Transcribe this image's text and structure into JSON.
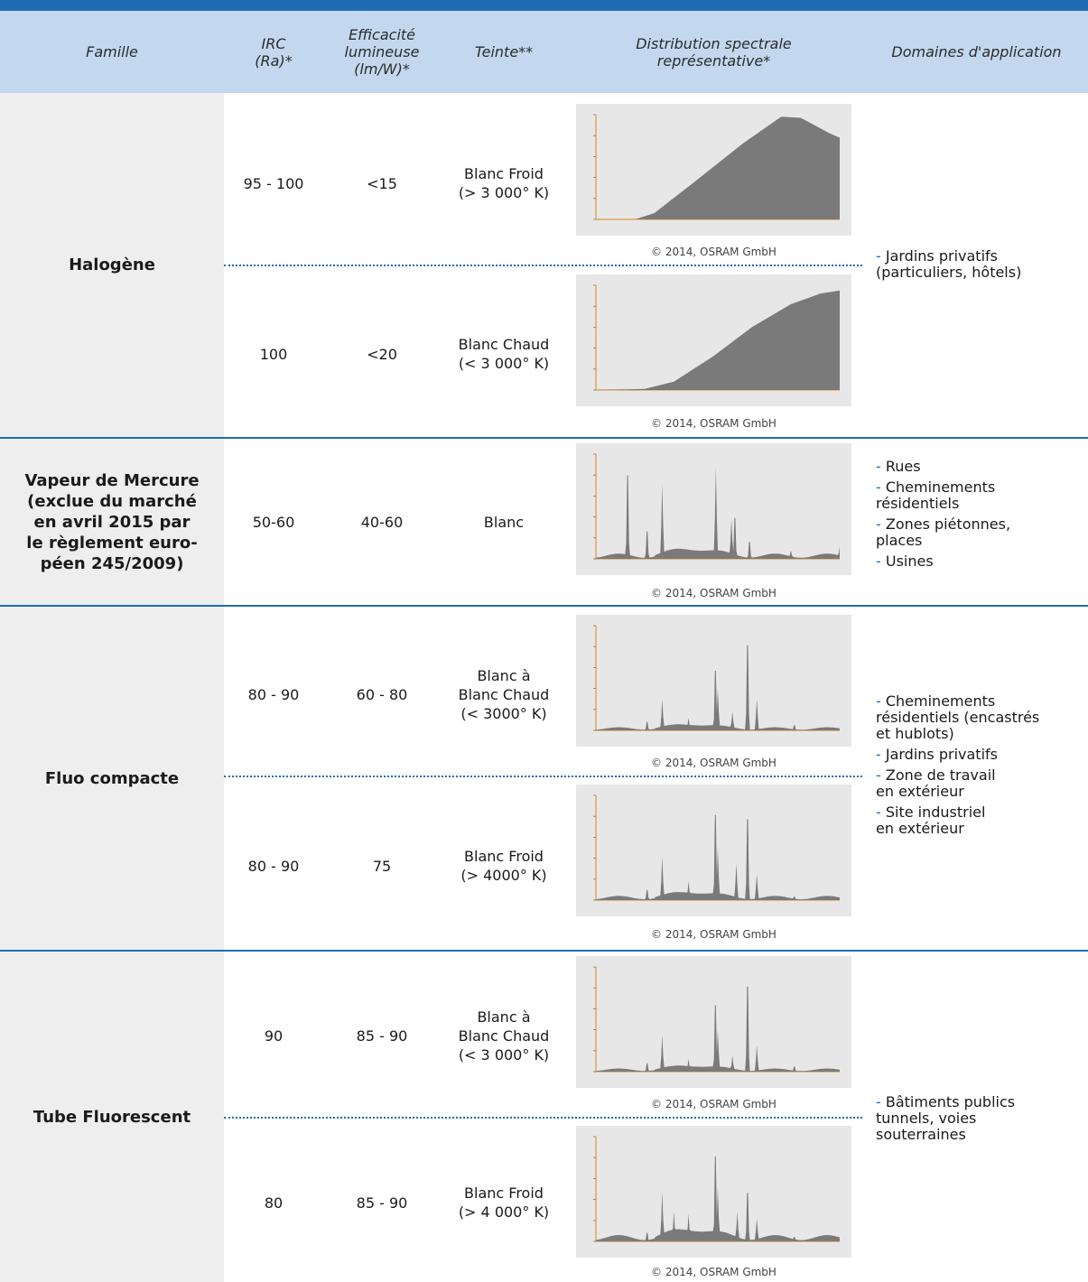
{
  "header": {
    "famille": "Famille",
    "irc": "IRC\n(Ra)*",
    "efficacite": "Efficacité\nlumineuse\n(lm/W)*",
    "teinte": "Teinte**",
    "distribution": "Distribution spectrale\nreprésentative*",
    "domaines": "Domaines d'application"
  },
  "credit": "© 2014, OSRAM GmbH",
  "families": {
    "halogene": "Halogène",
    "mercure": "Vapeur de Mercure\n(exclue du marché\nen avril 2015 par\nle règlement euro-\npéen 245/2009)",
    "fluo": "Fluo compacte",
    "tube": "Tube Fluorescent"
  },
  "rows": [
    {
      "irc": "95 - 100",
      "eff": "<15",
      "teinte": "Blanc Froid\n(> 3 000° K)"
    },
    {
      "irc": "100",
      "eff": "<20",
      "teinte": "Blanc Chaud\n(< 3 000° K)"
    },
    {
      "irc": "50-60",
      "eff": "40-60",
      "teinte": "Blanc"
    },
    {
      "irc": "80 - 90",
      "eff": "60 - 80",
      "teinte": "Blanc à\nBlanc Chaud\n(< 3000° K)"
    },
    {
      "irc": "80 - 90",
      "eff": "75",
      "teinte": "Blanc Froid\n(> 4000° K)"
    },
    {
      "irc": "90",
      "eff": "85 - 90",
      "teinte": "Blanc à\nBlanc Chaud\n(< 3 000° K)"
    },
    {
      "irc": "80",
      "eff": "85 - 90",
      "teinte": "Blanc Froid\n(> 4 000° K)"
    }
  ],
  "domains": {
    "halogene": [
      "Jardins privatifs\n(particuliers, hôtels)"
    ],
    "mercure": [
      "Rues",
      "Cheminements\nrésidentiels",
      "Zones piétonnes,\nplaces",
      "Usines"
    ],
    "fluo": [
      "Cheminements\nrésidentiels (encastrés\net hublots)",
      "Jardins privatifs",
      "Zone de travail\nen extérieur",
      "Site industriel\nen extérieur"
    ],
    "tube": [
      "Bâtiments publics\ntunnels, voies\nsouterraines"
    ]
  },
  "colors": {
    "accent": "#1f6db1",
    "header_bg": "#c3d8ee",
    "family_bg": "#eeeeee",
    "spectrum_fill": "#7a7a7a"
  }
}
